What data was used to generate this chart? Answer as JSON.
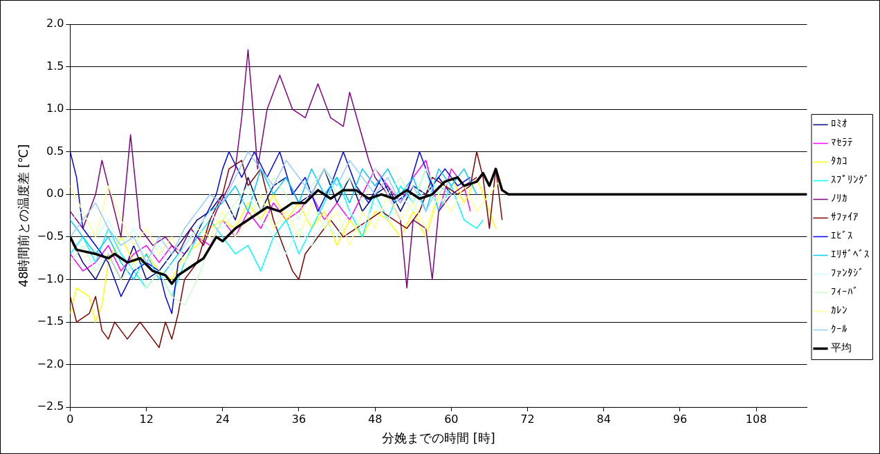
{
  "chart_data": {
    "type": "line",
    "xlabel": "分娩までの時間 [時]",
    "ylabel": "48時間前との温度差 [℃]",
    "xlim": [
      0,
      116
    ],
    "xticks": [
      0,
      12,
      24,
      36,
      48,
      60,
      72,
      84,
      96,
      108
    ],
    "ylim": [
      -2.5,
      2.0
    ],
    "yticks": [
      {
        "value": -2.5,
        "label": "−2.5"
      },
      {
        "value": -2.0,
        "label": "−2.0"
      },
      {
        "value": -1.5,
        "label": "−1.5"
      },
      {
        "value": -1.0,
        "label": "−1.0"
      },
      {
        "value": -0.5,
        "label": "−0.5"
      },
      {
        "value": 0.0,
        "label": "0.0"
      },
      {
        "value": 0.5,
        "label": "0.5"
      },
      {
        "value": 1.0,
        "label": "1.0"
      },
      {
        "value": 1.5,
        "label": "1.5"
      },
      {
        "value": 2.0,
        "label": "2.0"
      }
    ],
    "grid": "y",
    "legend": "right",
    "marker": "none",
    "line_style": "solid",
    "series": [
      {
        "name": "ﾛﾐｵ",
        "color": "#000080",
        "x": [
          0,
          2,
          4,
          6,
          8,
          10,
          12,
          14,
          16,
          18,
          20,
          22,
          24,
          26,
          28,
          30,
          32,
          34,
          36,
          38,
          40,
          42,
          44,
          46,
          48,
          50,
          52,
          54,
          56,
          58,
          60
        ],
        "values": [
          -0.5,
          -0.8,
          -1.0,
          -0.7,
          -1.0,
          -0.6,
          -1.0,
          -0.9,
          -0.7,
          -0.5,
          -0.3,
          -0.2,
          0.0,
          -0.3,
          0.2,
          -0.2,
          0.1,
          0.2,
          -0.1,
          0.0,
          0.3,
          -0.1,
          0.2,
          -0.2,
          0.0,
          0.1,
          -0.2,
          0.1,
          0.0,
          0.2,
          0.0
        ]
      },
      {
        "name": "ﾏｾﾗﾃ",
        "color": "#ff00ff",
        "x": [
          0,
          2,
          4,
          6,
          8,
          10,
          12,
          14,
          16,
          18,
          20,
          22,
          24,
          26,
          28,
          30,
          32,
          34,
          36,
          38,
          40,
          42,
          44,
          46,
          48,
          50,
          52,
          54,
          56,
          58,
          60,
          62,
          63
        ],
        "values": [
          -0.7,
          -0.9,
          -0.8,
          -0.6,
          -0.9,
          -0.7,
          -0.6,
          -0.8,
          -0.6,
          -0.7,
          -0.5,
          -0.6,
          -0.3,
          -0.5,
          -0.2,
          -0.4,
          -0.1,
          -0.3,
          -0.2,
          0.0,
          -0.3,
          -0.1,
          -0.3,
          0.0,
          0.3,
          0.1,
          -0.1,
          0.2,
          0.4,
          -0.2,
          0.3,
          0.1,
          -0.2
        ]
      },
      {
        "name": "ﾀｶｺ",
        "color": "#ffff00",
        "x": [
          0,
          1,
          3,
          4,
          5,
          6,
          8,
          10,
          12,
          14,
          16,
          18,
          20,
          22,
          24,
          26,
          28,
          30,
          32,
          34,
          36,
          38,
          40,
          42,
          44,
          46,
          48,
          50,
          52,
          54,
          56,
          58,
          60,
          62,
          64,
          66,
          67
        ],
        "values": [
          -1.4,
          -1.1,
          -1.2,
          -1.5,
          -1.3,
          -0.8,
          -0.5,
          -0.8,
          -0.7,
          -0.9,
          -1.0,
          -0.7,
          -0.6,
          -0.4,
          -0.3,
          -0.4,
          -0.1,
          -0.3,
          0.0,
          -0.3,
          -0.1,
          -0.4,
          -0.2,
          -0.6,
          -0.3,
          -0.5,
          -0.2,
          -0.3,
          -0.5,
          -0.2,
          -0.5,
          0.0,
          0.2,
          -0.1,
          0.2,
          -0.2,
          -0.4
        ]
      },
      {
        "name": "ｽﾌﾟﾘﾝｸﾞ",
        "color": "#00ffff",
        "x": [
          0,
          2,
          4,
          6,
          8,
          10,
          12,
          14,
          16,
          18,
          20,
          22,
          24,
          26,
          28,
          30,
          32,
          34,
          36,
          38,
          40,
          42,
          44,
          46,
          48,
          50,
          52,
          54,
          56,
          58,
          60,
          62,
          64,
          65
        ],
        "values": [
          -0.7,
          -0.5,
          -0.8,
          -0.4,
          -0.7,
          -0.9,
          -1.1,
          -0.9,
          -1.2,
          -0.8,
          -0.5,
          -0.3,
          -0.5,
          -0.7,
          -0.6,
          -0.9,
          -0.5,
          -0.3,
          -0.7,
          -0.4,
          -0.1,
          0.2,
          -0.2,
          -0.5,
          0.0,
          -0.3,
          0.1,
          -0.1,
          0.3,
          -0.2,
          0.1,
          -0.3,
          -0.4,
          -0.3
        ]
      },
      {
        "name": "ﾉﾘｶ",
        "color": "#800080",
        "x": [
          0,
          2,
          4,
          5,
          6,
          8,
          9.5,
          11,
          13,
          15,
          17,
          19,
          21,
          23,
          25,
          26,
          27,
          28,
          29,
          29.5,
          31,
          33,
          35,
          37,
          39,
          41,
          43,
          44,
          45.5,
          47,
          48,
          50,
          52,
          53,
          54,
          56,
          57,
          58,
          60,
          64
        ],
        "values": [
          -0.2,
          -0.4,
          0.0,
          0.4,
          0.1,
          -0.5,
          0.7,
          -0.4,
          -0.6,
          -0.5,
          -0.7,
          -0.4,
          -0.6,
          -0.2,
          0.1,
          0.3,
          0.9,
          1.7,
          0.8,
          0.3,
          1.0,
          1.4,
          1.0,
          0.9,
          1.3,
          0.9,
          0.8,
          1.2,
          0.8,
          0.4,
          0.2,
          0.0,
          -0.3,
          -1.1,
          -0.3,
          -0.4,
          -1.0,
          -0.2,
          0.0,
          0.2
        ]
      },
      {
        "name": "ｻﾌｧｲｱ",
        "color": "#800000",
        "x": [
          0,
          1,
          3,
          4,
          5,
          6,
          7,
          8,
          9,
          11,
          13,
          14,
          15,
          16,
          17,
          18,
          20,
          22,
          24,
          25,
          27,
          28,
          30,
          32,
          33,
          35,
          36,
          37,
          39,
          41,
          43,
          45,
          47,
          49,
          51,
          53,
          55,
          57,
          59,
          61,
          63,
          64,
          65,
          66,
          67,
          68
        ],
        "values": [
          -1.2,
          -1.5,
          -1.4,
          -1.2,
          -1.6,
          -1.7,
          -1.5,
          -1.6,
          -1.7,
          -1.5,
          -1.7,
          -1.8,
          -1.5,
          -1.7,
          -1.4,
          -1.0,
          -0.8,
          -0.3,
          0.0,
          0.3,
          0.4,
          0.1,
          0.3,
          -0.3,
          -0.5,
          -0.9,
          -1.0,
          -0.7,
          -0.5,
          -0.3,
          -0.5,
          -0.4,
          -0.3,
          -0.2,
          -0.3,
          -0.4,
          -0.2,
          0.2,
          0.1,
          0.0,
          0.1,
          0.5,
          0.2,
          -0.4,
          0.3,
          -0.3
        ]
      },
      {
        "name": "ｴﾋﾞｽ",
        "color": "#0000ff",
        "x": [
          0,
          1,
          2,
          4,
          6,
          8,
          10,
          12,
          14,
          15,
          16,
          17,
          19,
          21,
          23,
          24,
          25,
          27,
          29,
          31,
          33,
          35,
          37,
          39,
          41,
          43,
          45,
          47,
          49,
          51,
          53,
          55,
          57,
          59,
          61,
          63
        ],
        "values": [
          0.5,
          0.2,
          -0.4,
          -0.6,
          -0.8,
          -1.2,
          -0.9,
          -0.8,
          -0.9,
          -1.2,
          -1.4,
          -0.8,
          -0.6,
          -0.3,
          0.0,
          0.3,
          0.5,
          0.2,
          0.5,
          0.2,
          0.5,
          0.0,
          0.2,
          -0.2,
          0.1,
          0.5,
          0.1,
          -0.1,
          0.2,
          -0.1,
          0.0,
          0.5,
          0.1,
          0.3,
          0.1,
          0.2
        ]
      },
      {
        "name": "ｴﾘｻﾞﾍﾞｽ",
        "color": "#00ccff",
        "x": [
          0,
          2,
          4,
          6,
          8,
          10,
          12,
          14,
          16,
          18,
          20,
          22,
          24,
          26,
          28,
          30,
          32,
          34,
          36,
          38,
          40,
          42,
          44,
          46,
          48,
          50,
          52,
          54,
          56,
          58,
          60,
          62,
          64
        ],
        "values": [
          -0.3,
          -0.5,
          -0.7,
          -0.5,
          -0.8,
          -1.0,
          -0.7,
          -1.0,
          -0.8,
          -0.6,
          -0.4,
          -0.2,
          -0.1,
          0.1,
          -0.2,
          0.3,
          0.0,
          0.2,
          -0.1,
          0.3,
          0.0,
          0.2,
          -0.1,
          0.3,
          0.1,
          0.3,
          0.0,
          0.2,
          -0.2,
          0.3,
          0.1,
          0.3,
          0.0
        ]
      },
      {
        "name": "ﾌｧﾝﾀｼﾞ",
        "color": "#ccffff",
        "x": [
          0,
          2,
          4,
          6,
          8,
          10,
          12,
          14,
          16,
          18,
          20,
          22,
          24,
          26,
          28,
          30,
          32,
          34,
          36,
          38,
          40,
          42,
          44,
          46,
          48,
          50,
          52,
          54,
          56,
          58,
          60
        ],
        "values": [
          -0.3,
          -0.2,
          -0.5,
          -0.3,
          -0.6,
          -0.4,
          -0.8,
          -0.6,
          -0.9,
          -0.6,
          -0.4,
          -0.2,
          -0.4,
          -0.2,
          0.0,
          -0.3,
          -0.5,
          -0.7,
          -0.4,
          -0.6,
          -0.3,
          -0.5,
          -0.2,
          -0.4,
          -0.1,
          -0.3,
          0.0,
          -0.2,
          0.1,
          -0.1,
          0.0
        ]
      },
      {
        "name": "ﾌｨｰﾊﾞ",
        "color": "#ccffcc",
        "x": [
          0,
          2,
          4,
          6,
          8,
          10,
          12,
          14,
          16,
          18,
          20,
          22,
          24,
          26,
          28,
          30,
          32,
          34,
          36,
          38,
          40,
          42,
          44,
          46,
          48,
          50,
          52,
          54,
          56,
          58,
          60
        ],
        "values": [
          -0.8,
          -0.6,
          -0.9,
          -0.7,
          -1.0,
          -0.8,
          -1.1,
          -0.9,
          -1.2,
          -1.3,
          -1.0,
          -0.6,
          -0.3,
          -0.1,
          0.1,
          -0.2,
          0.2,
          0.0,
          -0.3,
          0.1,
          0.3,
          0.0,
          0.2,
          -0.1,
          0.3,
          0.0,
          0.2,
          -0.1,
          0.3,
          0.0,
          0.2
        ]
      },
      {
        "name": "ｶﾚﾝ",
        "color": "#ffff99",
        "x": [
          0,
          2,
          4,
          6,
          8,
          10,
          12,
          14,
          16,
          18,
          20,
          22,
          24,
          26,
          28,
          30,
          32,
          34,
          36,
          38,
          40,
          42,
          44,
          46,
          48,
          50,
          52,
          54,
          56,
          58,
          60,
          62,
          64,
          66,
          68
        ],
        "values": [
          0.1,
          -0.2,
          -0.5,
          0.1,
          -0.3,
          -0.6,
          -0.4,
          -0.7,
          -0.5,
          -0.8,
          -0.4,
          -0.5,
          -0.2,
          -0.5,
          -0.3,
          0.0,
          -0.4,
          -0.2,
          -0.5,
          -0.1,
          -0.4,
          -0.2,
          -0.6,
          -0.2,
          -0.4,
          0.0,
          -0.3,
          -0.1,
          -0.4,
          0.0,
          -0.2,
          0.1,
          -0.2,
          0.0,
          0.2
        ]
      },
      {
        "name": "ｸｰﾙ",
        "color": "#99ccff",
        "x": [
          0,
          2,
          4,
          6,
          8,
          10,
          12,
          14,
          16,
          18,
          20,
          22,
          24,
          26,
          28,
          30,
          32,
          34,
          36,
          38,
          40,
          42,
          44,
          46,
          48,
          50,
          52,
          54,
          56,
          58,
          60
        ],
        "values": [
          -0.5,
          -0.3,
          -0.1,
          -0.4,
          -0.6,
          -0.5,
          -0.8,
          -0.5,
          -0.7,
          -0.4,
          -0.2,
          0.0,
          -0.1,
          0.2,
          0.5,
          0.3,
          0.1,
          0.4,
          0.2,
          0.0,
          0.3,
          0.1,
          0.4,
          0.2,
          0.0,
          0.2,
          -0.1,
          0.1,
          -0.2,
          0.1,
          0.0
        ]
      },
      {
        "name": "平均",
        "color": "#000000",
        "x": [
          0,
          1,
          4,
          6,
          7,
          9,
          11,
          13,
          15,
          16,
          17,
          19,
          21,
          23,
          24,
          26,
          28,
          30,
          31,
          33,
          35,
          37,
          39,
          41,
          43,
          45,
          47,
          49,
          51,
          53,
          55,
          57,
          59,
          61,
          62,
          64,
          65,
          66,
          67,
          68,
          69,
          116
        ],
        "values": [
          -0.5,
          -0.65,
          -0.7,
          -0.75,
          -0.7,
          -0.8,
          -0.75,
          -0.9,
          -0.95,
          -1.05,
          -0.95,
          -0.85,
          -0.75,
          -0.5,
          -0.55,
          -0.4,
          -0.3,
          -0.2,
          -0.15,
          -0.2,
          -0.1,
          -0.1,
          0.05,
          -0.05,
          0.05,
          0.05,
          -0.05,
          0.0,
          -0.05,
          0.05,
          -0.05,
          0.0,
          0.15,
          0.2,
          0.1,
          0.15,
          0.25,
          0.1,
          0.3,
          0.05,
          0.0,
          0.0
        ]
      }
    ]
  }
}
